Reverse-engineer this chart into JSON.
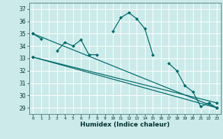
{
  "title": "",
  "xlabel": "Humidex (Indice chaleur)",
  "ylabel": "",
  "bg_color": "#cceaea",
  "grid_color": "#ffffff",
  "line_color": "#006868",
  "x": [
    0,
    1,
    2,
    3,
    4,
    5,
    6,
    7,
    8,
    9,
    10,
    11,
    12,
    13,
    14,
    15,
    16,
    17,
    18,
    19,
    20,
    21,
    22,
    23
  ],
  "series1": [
    35.0,
    34.6,
    null,
    33.6,
    34.3,
    34.0,
    34.5,
    33.3,
    33.3,
    null,
    35.2,
    36.3,
    36.7,
    36.2,
    35.4,
    33.3,
    null,
    32.6,
    32.0,
    30.8,
    30.3,
    29.1,
    29.4,
    29.0
  ],
  "line2": [
    [
      0,
      35.0
    ],
    [
      23,
      29.0
    ]
  ],
  "line3": [
    [
      0,
      33.1
    ],
    [
      23,
      29.0
    ]
  ],
  "line4": [
    [
      0,
      33.1
    ],
    [
      23,
      29.4
    ]
  ],
  "ylim": [
    28.5,
    37.5
  ],
  "yticks": [
    29,
    30,
    31,
    32,
    33,
    34,
    35,
    36,
    37
  ],
  "xticks": [
    0,
    1,
    2,
    3,
    4,
    5,
    6,
    7,
    8,
    9,
    10,
    11,
    12,
    13,
    14,
    15,
    16,
    17,
    18,
    19,
    20,
    21,
    22,
    23
  ],
  "xtick_labels": [
    "0",
    "1",
    "2",
    "3",
    "4",
    "5",
    "6",
    "7",
    "8",
    "9",
    "10",
    "11",
    "12",
    "13",
    "14",
    "15",
    "16",
    "17",
    "18",
    "19",
    "20",
    "21",
    "22",
    "23"
  ],
  "marker": "D",
  "markersize": 2.2,
  "lw": 0.9
}
